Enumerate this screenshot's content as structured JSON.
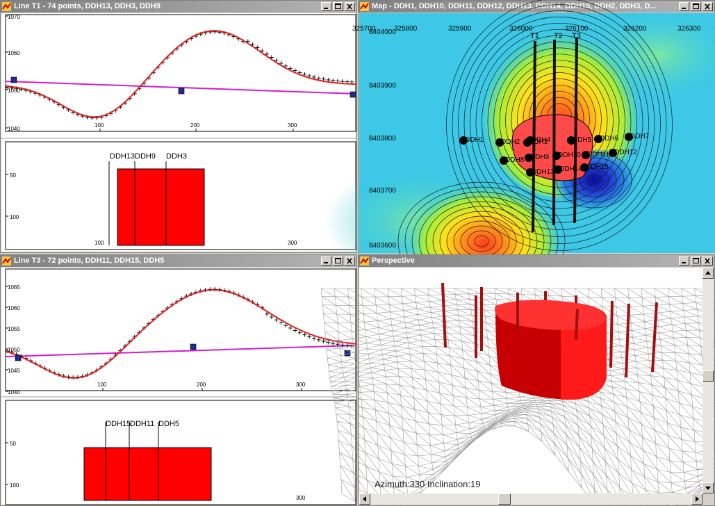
{
  "windows": {
    "line_t1": {
      "title": "Line T1  - 74 points, DDH13, DDH3, DDH9",
      "profile_y_ticks": [
        "1070",
        "1060",
        "1050",
        "1040"
      ],
      "x_ticks": [
        "100",
        "200",
        "300"
      ],
      "section_y_ticks": [
        "50",
        "100"
      ],
      "hole_labels": [
        "DDH13",
        "DDH9",
        "DDH3"
      ]
    },
    "map": {
      "title": "Map - DDH1, DDH10, DDH11, DDH12, DDH13, DDH14, DDH15, DDH2, DDH3, D...",
      "x_ticks": [
        "325700",
        "325800",
        "325900",
        "326000",
        "326100",
        "326200",
        "326300"
      ],
      "y_ticks": [
        "8404000",
        "8403900",
        "8403800",
        "8403700",
        "8403600"
      ],
      "line_labels": [
        "T1",
        "T2",
        "T3"
      ],
      "holes": [
        "DDH1",
        "DDH2",
        "DDH3",
        "DDH4",
        "DDH5",
        "DDH6",
        "DDH7",
        "DDH8",
        "DDH9",
        "DDH10",
        "DDH11",
        "DDH12",
        "DDH13",
        "DDH14",
        "DDH15"
      ]
    },
    "line_t3": {
      "title": "Line T3  - 72 points, DDH11, DDH15, DDH5",
      "profile_y_ticks": [
        "1065",
        "1060",
        "1055",
        "1050",
        "1045",
        "1040"
      ],
      "x_ticks": [
        "100",
        "200",
        "300"
      ],
      "section_y_ticks": [
        "50",
        "100"
      ],
      "hole_labels": [
        "DDH15",
        "DDH11",
        "DDH5"
      ]
    },
    "perspective": {
      "title": "Perspective",
      "caption": "Azimuth:330 Inclination:19"
    }
  },
  "colors": {
    "model_curve": "#e0201c",
    "observed_points": "#000000",
    "regional_line": "#d61ad6",
    "drill_markers": "#1f2d8f",
    "section_block": "#ff0000",
    "orebody_3d": "#ff1a1a",
    "drill_hole_3d": "#a01010"
  },
  "icons": [
    "app-icon",
    "minimize-icon",
    "maximize-icon",
    "close-icon"
  ]
}
